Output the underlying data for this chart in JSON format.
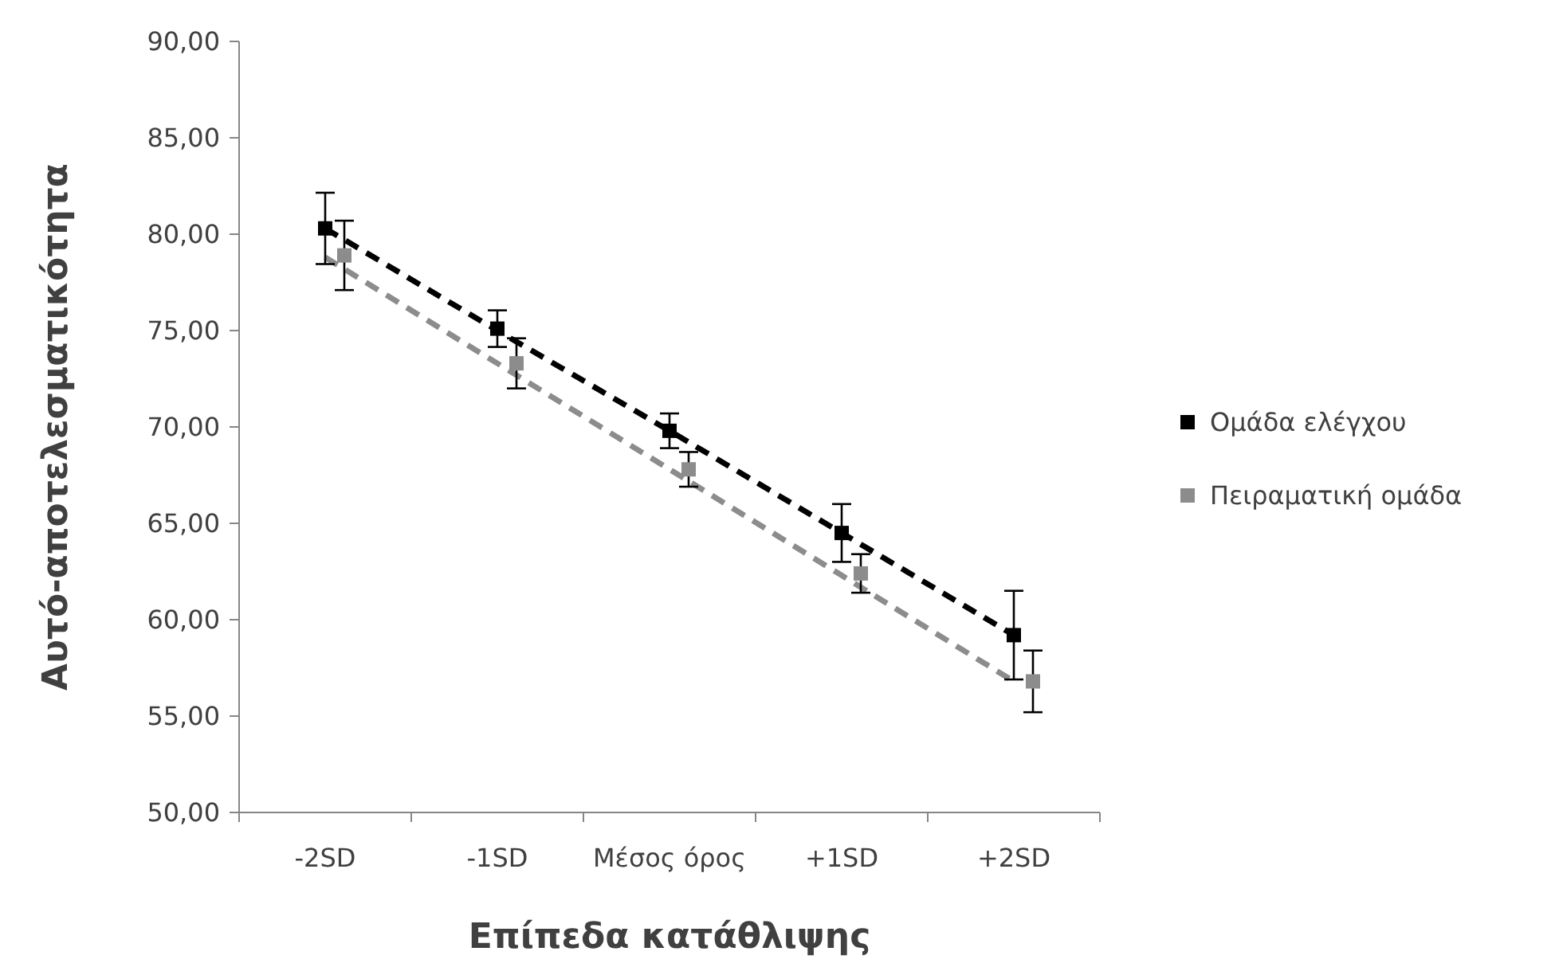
{
  "chart_data": {
    "type": "scatter",
    "xlabel": "Επίπεδα κατάθλιψης",
    "ylabel": "Αυτό-αποτελεσματικότητα",
    "categories": [
      "-2SD",
      "-1SD",
      "Μέσος όρος",
      "+1SD",
      "+2SD"
    ],
    "ylim": [
      50,
      90
    ],
    "yticks": [
      {
        "value": 50,
        "label": "50,00"
      },
      {
        "value": 55,
        "label": "55,00"
      },
      {
        "value": 60,
        "label": "60,00"
      },
      {
        "value": 65,
        "label": "65,00"
      },
      {
        "value": 70,
        "label": "70,00"
      },
      {
        "value": 75,
        "label": "75,00"
      },
      {
        "value": 80,
        "label": "80,00"
      },
      {
        "value": 85,
        "label": "85,00"
      },
      {
        "value": 90,
        "label": "90,00"
      }
    ],
    "grid": false,
    "legend": "right",
    "marker": "square",
    "series": [
      {
        "name": "Ομάδα ελέγχου",
        "color": "#000000",
        "values": [
          80.3,
          75.1,
          69.8,
          64.5,
          59.2
        ],
        "errors": [
          1.85,
          0.95,
          0.9,
          1.5,
          2.3
        ]
      },
      {
        "name": "Πειραματική ομάδα",
        "color": "#8c8c8c",
        "values": [
          78.9,
          73.3,
          67.8,
          62.4,
          56.8
        ],
        "errors": [
          1.8,
          1.3,
          0.9,
          1.0,
          1.6
        ]
      },
      {
        "type": "line",
        "color": "#000000",
        "line_style": "dashed",
        "marker": "none",
        "values": [
          80.3,
          75.0,
          69.8,
          64.5,
          59.2
        ]
      },
      {
        "type": "line",
        "color": "#8c8c8c",
        "line_style": "dashed",
        "marker": "none",
        "values": [
          78.8,
          73.3,
          67.8,
          62.3,
          56.8
        ]
      }
    ]
  }
}
